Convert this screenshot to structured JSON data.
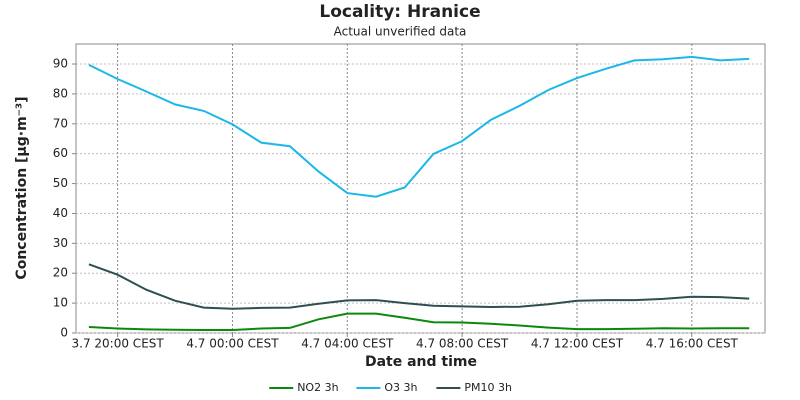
{
  "chart_data": {
    "type": "line",
    "title": "Locality: Hranice",
    "subtitle": "Actual unverified data",
    "x_label": "Date and time",
    "y_label": "Concentration [µg·m⁻³]",
    "categories": [
      null,
      "3.7 20:00 CEST",
      null,
      null,
      null,
      "4.7 00:00 CEST",
      null,
      null,
      null,
      "4.7 04:00 CEST",
      null,
      null,
      null,
      "4.7 08:00 CEST",
      null,
      null,
      null,
      "4.7 12:00 CEST",
      null,
      null,
      null,
      "4.7 16:00 CEST",
      null,
      null
    ],
    "series": [
      {
        "name": "NO2 3h",
        "color": "#0a8a0a",
        "values": [
          2,
          1.5,
          1.2,
          1.1,
          1,
          1,
          1.5,
          1.7,
          4.6,
          6.5,
          6.5,
          5.1,
          3.6,
          3.5,
          3.1,
          2.5,
          1.8,
          1.3,
          1.3,
          1.4,
          1.6,
          1.5,
          1.6,
          1.6
        ]
      },
      {
        "name": "O3 3h",
        "color": "#1ab8e8",
        "values": [
          89.7,
          85,
          80.8,
          76.5,
          74.3,
          69.8,
          63.7,
          62.5,
          54,
          46.8,
          45.6,
          48.7,
          59.9,
          64.2,
          71.3,
          76,
          81.3,
          85.3,
          88.4,
          91.2,
          91.6,
          92.4,
          91.2,
          91.7
        ]
      },
      {
        "name": "PM10 3h",
        "color": "#2f4f4f",
        "values": [
          23,
          19.5,
          14.5,
          10.8,
          8.5,
          8.1,
          8.4,
          8.5,
          9.8,
          10.9,
          11,
          10,
          9.1,
          8.9,
          8.7,
          8.8,
          9.6,
          10.8,
          11,
          11,
          11.4,
          12.1,
          12,
          11.5
        ]
      }
    ],
    "ylim": [
      0,
      96.7
    ],
    "yticks": [
      0,
      10,
      20,
      30,
      40,
      50,
      60,
      70,
      80,
      90
    ],
    "grid": true,
    "legend": "bottom"
  }
}
